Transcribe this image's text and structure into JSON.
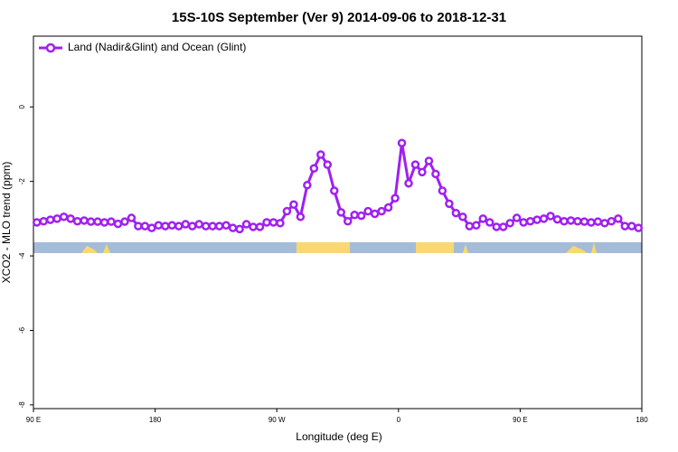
{
  "chart_data": {
    "type": "line",
    "title": "15S-10S September (Ver 9)   2014-09-06 to 2018-12-31",
    "x_label": "Longitude (deg E)",
    "y_label": "XCO2 - MLO trend (ppm)",
    "legend": "top-left",
    "xlim": [
      90,
      540
    ],
    "ylim": [
      -8.1,
      1.9
    ],
    "xticks": [
      {
        "value": 90,
        "label": "90 E"
      },
      180,
      {
        "value": 270,
        "label": "90 W"
      },
      {
        "value": 360,
        "label": "0"
      },
      {
        "value": 450,
        "label": "90 E"
      },
      {
        "value": 540,
        "label": "180"
      }
    ],
    "yticks": [
      0,
      -2,
      -4,
      -6,
      -8
    ],
    "x": [
      92.5,
      97.5,
      102.5,
      107.5,
      112.5,
      117.5,
      122.5,
      127.5,
      132.5,
      137.5,
      142.5,
      147.5,
      152.5,
      157.5,
      162.5,
      167.5,
      172.5,
      177.5,
      182.5,
      187.5,
      192.5,
      197.5,
      202.5,
      207.5,
      212.5,
      217.5,
      222.5,
      227.5,
      232.5,
      237.5,
      242.5,
      247.5,
      252.5,
      257.5,
      262.5,
      267.5,
      272.5,
      277.5,
      282.5,
      287.5,
      292.5,
      297.5,
      302.5,
      307.5,
      312.5,
      317.5,
      322.5,
      327.5,
      332.5,
      337.5,
      342.5,
      347.5,
      352.5,
      357.5,
      362.5,
      367.5,
      372.5,
      377.5,
      382.5,
      387.5,
      392.5,
      397.5,
      402.5,
      407.5,
      412.5,
      417.5,
      422.5,
      427.5,
      432.5,
      437.5,
      442.5,
      447.5,
      452.5,
      457.5,
      462.5,
      467.5,
      472.5,
      477.5,
      482.5,
      487.5,
      492.5,
      497.5,
      502.5,
      507.5,
      512.5,
      517.5,
      522.5,
      527.5,
      532.5,
      537.5
    ],
    "series": [
      {
        "name": "Land (Nadir&Glint) and Ocean (Glint)",
        "color": "#a020f0",
        "values": [
          -3.1,
          -3.07,
          -3.03,
          -3.0,
          -2.95,
          -3.0,
          -3.07,
          -3.05,
          -3.08,
          -3.08,
          -3.1,
          -3.08,
          -3.14,
          -3.08,
          -2.98,
          -3.2,
          -3.2,
          -3.25,
          -3.18,
          -3.2,
          -3.18,
          -3.2,
          -3.15,
          -3.2,
          -3.15,
          -3.2,
          -3.2,
          -3.2,
          -3.18,
          -3.25,
          -3.28,
          -3.15,
          -3.22,
          -3.22,
          -3.1,
          -3.1,
          -3.12,
          -2.8,
          -2.62,
          -2.95,
          -2.1,
          -1.65,
          -1.28,
          -1.55,
          -2.25,
          -2.83,
          -3.07,
          -2.9,
          -2.92,
          -2.8,
          -2.87,
          -2.8,
          -2.7,
          -2.45,
          -0.97,
          -2.05,
          -1.55,
          -1.75,
          -1.45,
          -1.8,
          -2.25,
          -2.6,
          -2.85,
          -2.95,
          -3.2,
          -3.18,
          -3.0,
          -3.1,
          -3.22,
          -3.22,
          -3.12,
          -2.98,
          -3.1,
          -3.07,
          -3.03,
          -3.0,
          -2.93,
          -3.02,
          -3.07,
          -3.05,
          -3.07,
          -3.08,
          -3.1,
          -3.08,
          -3.12,
          -3.07,
          -3.0,
          -3.2,
          -3.2,
          -3.25
        ]
      }
    ]
  }
}
